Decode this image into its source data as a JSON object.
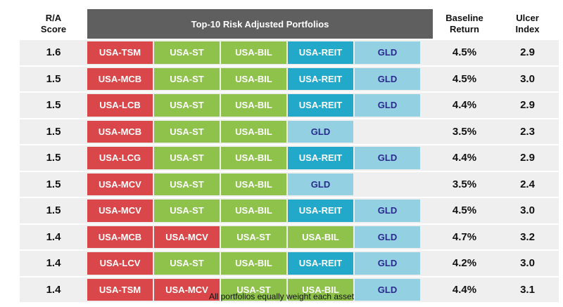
{
  "header": {
    "ra_score": "R/A\nScore",
    "title": "Top-10 Risk Adjusted Portfolios",
    "baseline_return": "Baseline\nReturn",
    "ulcer_index": "Ulcer\nIndex"
  },
  "colors": {
    "red": "#d9474a",
    "green": "#8ec24b",
    "blue": "#22a8c9",
    "lightblue": "#93d1e2",
    "title_bg": "#5f5f5f",
    "row_bg": "#efefef"
  },
  "rows": [
    {
      "score": "1.6",
      "assets": [
        {
          "label": "USA-TSM",
          "color": "red"
        },
        {
          "label": "USA-ST",
          "color": "green"
        },
        {
          "label": "USA-BIL",
          "color": "green"
        },
        {
          "label": "USA-REIT",
          "color": "blue"
        },
        {
          "label": "GLD",
          "color": "lightblue"
        }
      ],
      "return": "4.5%",
      "ulcer": "2.9"
    },
    {
      "score": "1.5",
      "assets": [
        {
          "label": "USA-MCB",
          "color": "red"
        },
        {
          "label": "USA-ST",
          "color": "green"
        },
        {
          "label": "USA-BIL",
          "color": "green"
        },
        {
          "label": "USA-REIT",
          "color": "blue"
        },
        {
          "label": "GLD",
          "color": "lightblue"
        }
      ],
      "return": "4.5%",
      "ulcer": "3.0"
    },
    {
      "score": "1.5",
      "assets": [
        {
          "label": "USA-LCB",
          "color": "red"
        },
        {
          "label": "USA-ST",
          "color": "green"
        },
        {
          "label": "USA-BIL",
          "color": "green"
        },
        {
          "label": "USA-REIT",
          "color": "blue"
        },
        {
          "label": "GLD",
          "color": "lightblue"
        }
      ],
      "return": "4.4%",
      "ulcer": "2.9"
    },
    {
      "score": "1.5",
      "assets": [
        {
          "label": "USA-MCB",
          "color": "red"
        },
        {
          "label": "USA-ST",
          "color": "green"
        },
        {
          "label": "USA-BIL",
          "color": "green"
        },
        {
          "label": "GLD",
          "color": "lightblue"
        }
      ],
      "return": "3.5%",
      "ulcer": "2.3"
    },
    {
      "score": "1.5",
      "assets": [
        {
          "label": "USA-LCG",
          "color": "red"
        },
        {
          "label": "USA-ST",
          "color": "green"
        },
        {
          "label": "USA-BIL",
          "color": "green"
        },
        {
          "label": "USA-REIT",
          "color": "blue"
        },
        {
          "label": "GLD",
          "color": "lightblue"
        }
      ],
      "return": "4.4%",
      "ulcer": "2.9"
    },
    {
      "score": "1.5",
      "assets": [
        {
          "label": "USA-MCV",
          "color": "red"
        },
        {
          "label": "USA-ST",
          "color": "green"
        },
        {
          "label": "USA-BIL",
          "color": "green"
        },
        {
          "label": "GLD",
          "color": "lightblue"
        }
      ],
      "return": "3.5%",
      "ulcer": "2.4"
    },
    {
      "score": "1.5",
      "assets": [
        {
          "label": "USA-MCV",
          "color": "red"
        },
        {
          "label": "USA-ST",
          "color": "green"
        },
        {
          "label": "USA-BIL",
          "color": "green"
        },
        {
          "label": "USA-REIT",
          "color": "blue"
        },
        {
          "label": "GLD",
          "color": "lightblue"
        }
      ],
      "return": "4.5%",
      "ulcer": "3.0"
    },
    {
      "score": "1.4",
      "assets": [
        {
          "label": "USA-MCB",
          "color": "red"
        },
        {
          "label": "USA-MCV",
          "color": "red"
        },
        {
          "label": "USA-ST",
          "color": "green"
        },
        {
          "label": "USA-BIL",
          "color": "green"
        },
        {
          "label": "GLD",
          "color": "lightblue"
        }
      ],
      "return": "4.7%",
      "ulcer": "3.2"
    },
    {
      "score": "1.4",
      "assets": [
        {
          "label": "USA-LCV",
          "color": "red"
        },
        {
          "label": "USA-ST",
          "color": "green"
        },
        {
          "label": "USA-BIL",
          "color": "green"
        },
        {
          "label": "USA-REIT",
          "color": "blue"
        },
        {
          "label": "GLD",
          "color": "lightblue"
        }
      ],
      "return": "4.2%",
      "ulcer": "3.0"
    },
    {
      "score": "1.4",
      "assets": [
        {
          "label": "USA-TSM",
          "color": "red"
        },
        {
          "label": "USA-MCV",
          "color": "red"
        },
        {
          "label": "USA-ST",
          "color": "green"
        },
        {
          "label": "USA-BIL",
          "color": "green"
        },
        {
          "label": "GLD",
          "color": "lightblue"
        }
      ],
      "return": "4.4%",
      "ulcer": "3.1"
    }
  ],
  "footer": "All portfolios equally weight each asset"
}
